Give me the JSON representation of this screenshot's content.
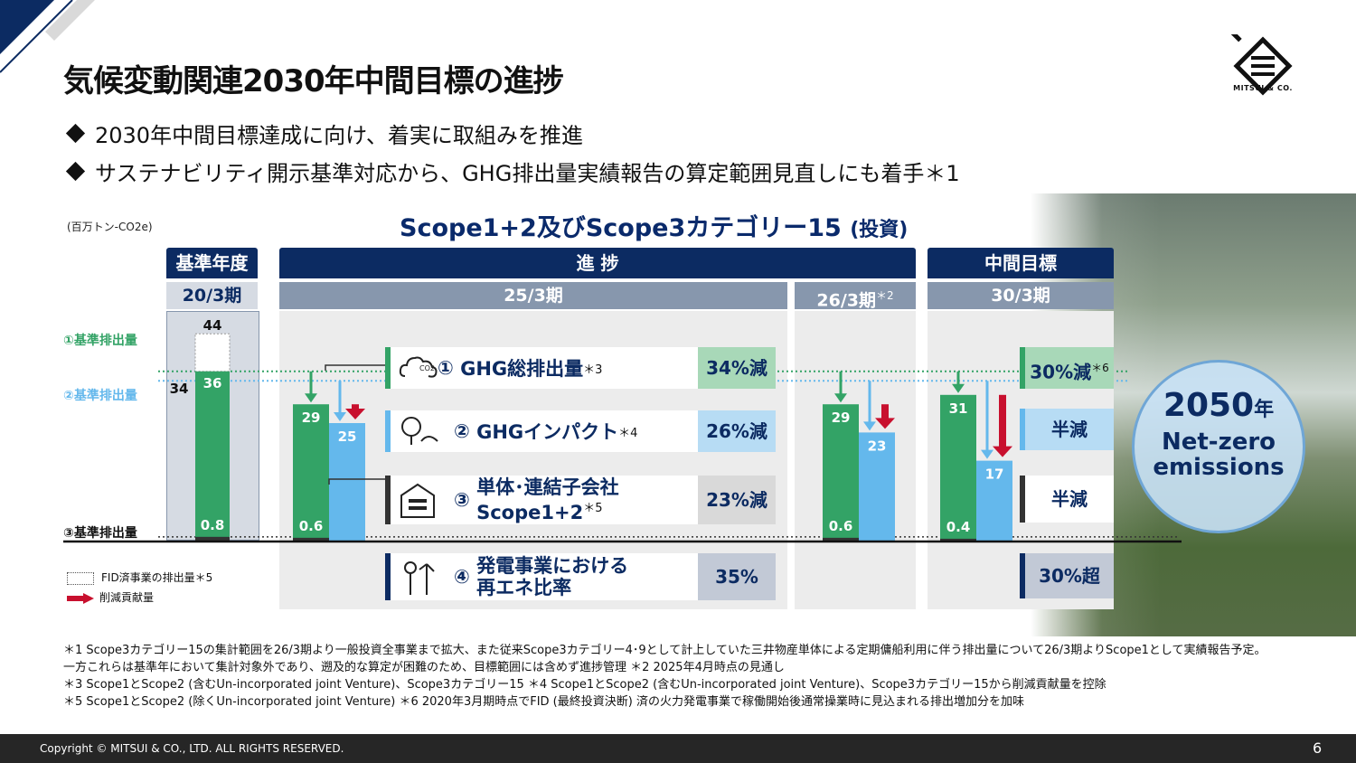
{
  "title": "気候変動関連2030年中間目標の進捗",
  "bullets": [
    "2030年中間目標達成に向け、着実に取組みを推進",
    "サステナビリティ開示基準対応から、GHG排出量実績報告の算定範囲見直しにも着手＊1"
  ],
  "logo_text": "MITSUI & CO.",
  "unit": "(百万トン-CO2e)",
  "chart_title": "Scope1+2及びScope3カテゴリー15",
  "chart_title_suffix": "(投資)",
  "headers": {
    "base": "基準年度",
    "progress": "進 捗",
    "target": "中間目標"
  },
  "periods": {
    "base": "20/3期",
    "p25": "25/3期",
    "p26": "26/3期",
    "p26_note": "＊2",
    "p30": "30/3期"
  },
  "baselines": {
    "b1": "①基準排出量",
    "b2": "②基準排出量",
    "b3": "③基準排出量"
  },
  "labels": [
    {
      "num": "①",
      "text": "GHG総排出量",
      "note": "＊3",
      "pct": "34%減",
      "target": "30%減",
      "target_note": "＊6"
    },
    {
      "num": "②",
      "text": "GHGインパクト",
      "note": "＊4",
      "pct": "26%減",
      "target": "半減",
      "target_note": ""
    },
    {
      "num": "③",
      "text": "単体･連結子会社",
      "text2": "Scope1+2",
      "note": "＊5",
      "pct": "23%減",
      "target": "半減",
      "target_note": ""
    },
    {
      "num": "④",
      "text": "発電事業における",
      "text2": "再エネ比率",
      "note": "",
      "pct": "35%",
      "target": "30%超",
      "target_note": ""
    }
  ],
  "goal": {
    "year": "2050",
    "year_unit": "年",
    "line1": "Net-zero",
    "line2": "emissions"
  },
  "legend": {
    "fid": "FID済事業の排出量＊5",
    "reduction": "削減貢献量"
  },
  "notes": [
    "＊1  Scope3カテゴリー15の集計範囲を26/3期より一般投資全事業まで拡大、また従来Scope3カテゴリー4･9として計上していた三井物産単体による定期傭船利用に伴う排出量について26/3期よりScope1として実績報告予定。",
    "一方これらは基準年において集計対象外であり、遡及的な算定が困難のため、目標範囲には含めず進捗管理  ＊2 2025年4月時点の見通し",
    "＊3 Scope1とScope2 (含むUn-incorporated joint Venture)、Scope3カテゴリー15   ＊4 Scope1とScope2 (含むUn-incorporated joint Venture)、Scope3カテゴリー15から削減貢献量を控除",
    "＊5 Scope1とScope2 (除くUn-incorporated joint Venture)  ＊6 2020年3月期時点でFID (最終投資決断) 済の火力発電事業で稼働開始後通常操業時に見込まれる排出増加分を加味"
  ],
  "footer": {
    "copyright": "Copyright © MITSUI & CO., LTD. ALL RIGHTS RESERVED.",
    "page": "6"
  },
  "colors": {
    "green": "#33a366",
    "blue": "#64b8ec",
    "navy": "#0c2b62",
    "red": "#c8102e",
    "dark": "#333333"
  },
  "chart_data": {
    "type": "bar",
    "title": "Scope1+2及びScope3カテゴリー15 (投資)",
    "ylabel": "(百万トン-CO2e)",
    "categories": [
      "20/3期",
      "25/3期",
      "26/3期",
      "30/3期"
    ],
    "series": [
      {
        "name": "①GHG総排出量",
        "values": [
          36,
          29,
          29,
          31
        ]
      },
      {
        "name": "②GHGインパクト",
        "values": [
          null,
          25,
          23,
          17
        ]
      },
      {
        "name": "③単体･連結子会社 Scope1+2",
        "values": [
          0.8,
          0.6,
          0.6,
          0.4
        ]
      }
    ],
    "extra_labels": {
      "base_total_with_fid": 44,
      "base_impact": 34
    },
    "ylim": [
      0,
      46
    ]
  }
}
